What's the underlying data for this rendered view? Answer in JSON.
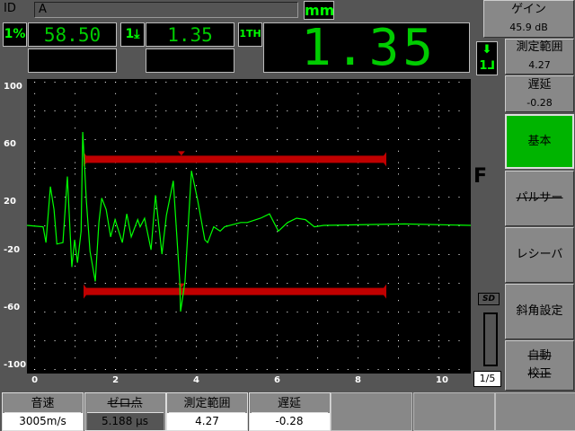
{
  "header": {
    "id_label": "ID",
    "id_value": "A",
    "unit": "mm"
  },
  "readouts": [
    {
      "icon": "1%",
      "value": "58.50",
      "icon_name": "amplitude-percent-icon"
    },
    {
      "icon": "1⤓",
      "value": "1.35",
      "icon_name": "depth-icon"
    },
    {
      "icon": "1TH",
      "value": "",
      "icon_name": "thickness-icon"
    }
  ],
  "big_readout": "1.35",
  "side_params": [
    {
      "label": "ゲイン",
      "value": "45.9 dB"
    },
    {
      "label": "測定範囲",
      "value": "4.27"
    },
    {
      "label": "遅延",
      "value": "-0.28"
    }
  ],
  "menu": [
    {
      "label": "基本",
      "active": true,
      "disabled": false
    },
    {
      "label": "パルサー",
      "active": false,
      "disabled": true
    },
    {
      "label": "レシーバ",
      "active": false,
      "disabled": false
    },
    {
      "label": "斜角設定",
      "active": false,
      "disabled": false
    },
    {
      "label": "自動\n校正",
      "active": false,
      "disabled": true
    }
  ],
  "status": {
    "mode": "F",
    "sd_label": "SD",
    "page": "1/5"
  },
  "bottom": [
    {
      "label": "音速",
      "value": "3005m/s",
      "disabled": false
    },
    {
      "label": "ゼロ点",
      "value": "5.188 µs",
      "disabled": true
    },
    {
      "label": "測定範囲",
      "value": "4.27",
      "disabled": false
    },
    {
      "label": "遅延",
      "value": "-0.28",
      "disabled": false
    }
  ],
  "colors": {
    "trace": "#00ff00",
    "gate": "#c00000",
    "active_menu": "#00b400"
  },
  "chart_data": {
    "type": "line",
    "x_ticks": [
      "0",
      "2",
      "4",
      "6",
      "8",
      "10"
    ],
    "y_ticks": [
      "100",
      "60",
      "20",
      "-20",
      "-60",
      "-100"
    ],
    "xlim": [
      -0.18,
      10.8
    ],
    "ylim": [
      -100,
      100
    ],
    "grid": true,
    "waveform": [
      [
        -0.18,
        0
      ],
      [
        0.22,
        -1
      ],
      [
        0.29,
        -12
      ],
      [
        0.4,
        27
      ],
      [
        0.49,
        11
      ],
      [
        0.56,
        -13
      ],
      [
        0.71,
        -12
      ],
      [
        0.82,
        34
      ],
      [
        0.93,
        -29
      ],
      [
        1.0,
        -10
      ],
      [
        1.07,
        -26
      ],
      [
        1.16,
        -4
      ],
      [
        1.2,
        65
      ],
      [
        1.29,
        17
      ],
      [
        1.38,
        -18
      ],
      [
        1.51,
        -39
      ],
      [
        1.6,
        2
      ],
      [
        1.67,
        19
      ],
      [
        1.78,
        11
      ],
      [
        1.89,
        -8
      ],
      [
        2.0,
        4
      ],
      [
        2.18,
        -12
      ],
      [
        2.29,
        8
      ],
      [
        2.4,
        -8
      ],
      [
        2.56,
        4
      ],
      [
        2.62,
        -1
      ],
      [
        2.73,
        5
      ],
      [
        2.89,
        -17
      ],
      [
        3.0,
        21
      ],
      [
        3.16,
        -20
      ],
      [
        3.27,
        7
      ],
      [
        3.44,
        31
      ],
      [
        3.6,
        -39
      ],
      [
        3.62,
        -60
      ],
      [
        3.73,
        -39
      ],
      [
        3.82,
        5
      ],
      [
        3.89,
        38
      ],
      [
        4.04,
        18
      ],
      [
        4.22,
        -10
      ],
      [
        4.29,
        -12
      ],
      [
        4.44,
        -1
      ],
      [
        4.6,
        -4
      ],
      [
        4.71,
        -1
      ],
      [
        5.11,
        2
      ],
      [
        5.27,
        2
      ],
      [
        5.6,
        5
      ],
      [
        5.82,
        8
      ],
      [
        6.04,
        -4
      ],
      [
        6.27,
        2
      ],
      [
        6.49,
        5
      ],
      [
        6.71,
        4
      ],
      [
        6.93,
        -1
      ],
      [
        7.16,
        0
      ],
      [
        9.16,
        1
      ],
      [
        10.8,
        0
      ]
    ],
    "gates": [
      {
        "start": 1.22,
        "end": 8.71,
        "level": 46,
        "marker": 3.64
      },
      {
        "start": 1.22,
        "end": 8.71,
        "level": -46,
        "marker": 3.64
      }
    ]
  }
}
